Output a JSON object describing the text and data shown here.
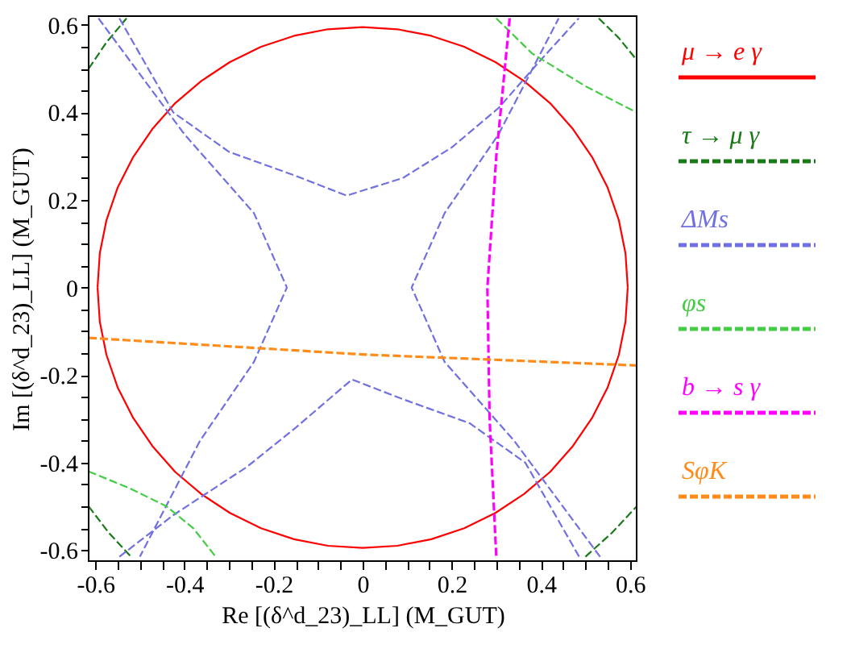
{
  "chart_data": {
    "type": "line",
    "xlabel": "Re [(δ^d_23)_LL] (M_GUT)",
    "ylabel": "Im [(δ^d_23)_LL] (M_GUT)",
    "xlim": [
      -0.615,
      0.615
    ],
    "ylim": [
      -0.625,
      0.62
    ],
    "xticks": [
      -0.6,
      {
        "value": -0.55,
        "label": null
      },
      {
        "value": -0.5,
        "label": null
      },
      {
        "value": -0.45,
        "label": null
      },
      -0.4,
      {
        "value": -0.35,
        "label": null
      },
      {
        "value": -0.3,
        "label": null
      },
      {
        "value": -0.25,
        "label": null
      },
      -0.2,
      {
        "value": -0.15,
        "label": null
      },
      {
        "value": -0.1,
        "label": null
      },
      {
        "value": -0.05,
        "label": null
      },
      0,
      {
        "value": 0.05,
        "label": null
      },
      {
        "value": 0.1,
        "label": null
      },
      {
        "value": 0.15,
        "label": null
      },
      0.2,
      {
        "value": 0.25,
        "label": null
      },
      {
        "value": 0.3,
        "label": null
      },
      {
        "value": 0.35,
        "label": null
      },
      0.4,
      {
        "value": 0.45,
        "label": null
      },
      {
        "value": 0.5,
        "label": null
      },
      {
        "value": 0.55,
        "label": null
      },
      0.6
    ],
    "yticks": [
      -0.6,
      {
        "value": -0.55,
        "label": null
      },
      {
        "value": -0.5,
        "label": null
      },
      {
        "value": -0.45,
        "label": null
      },
      -0.4,
      {
        "value": -0.35,
        "label": null
      },
      {
        "value": -0.3,
        "label": null
      },
      {
        "value": -0.25,
        "label": null
      },
      -0.2,
      {
        "value": -0.15,
        "label": null
      },
      {
        "value": -0.1,
        "label": null
      },
      {
        "value": -0.05,
        "label": null
      },
      0,
      {
        "value": 0.05,
        "label": null
      },
      {
        "value": 0.1,
        "label": null
      },
      {
        "value": 0.15,
        "label": null
      },
      0.2,
      {
        "value": 0.25,
        "label": null
      },
      {
        "value": 0.3,
        "label": null
      },
      {
        "value": 0.35,
        "label": null
      },
      0.4,
      {
        "value": 0.45,
        "label": null
      },
      {
        "value": 0.5,
        "label": null
      },
      {
        "value": 0.55,
        "label": null
      },
      0.6
    ],
    "grid": false,
    "legend": "right",
    "marker": "none",
    "series": [
      {
        "name": "μ → e γ",
        "color": "#ff0000",
        "line_style": "solid",
        "x": [
          0.595,
          0.59,
          0.575,
          0.55,
          0.515,
          0.472,
          0.421,
          0.362,
          0.298,
          0.228,
          0.154,
          0.078,
          0,
          -0.078,
          -0.154,
          -0.228,
          -0.298,
          -0.362,
          -0.421,
          -0.472,
          -0.515,
          -0.55,
          -0.575,
          -0.59,
          -0.595,
          null,
          -0.595,
          -0.59,
          -0.575,
          -0.55,
          -0.515,
          -0.472,
          -0.421,
          -0.362,
          -0.298,
          -0.228,
          -0.154,
          -0.078,
          0,
          0.078,
          0.154,
          0.228,
          0.298,
          0.362,
          0.421,
          0.472,
          0.515,
          0.55,
          0.575,
          0.59,
          0.595
        ],
        "values": [
          0,
          0.078,
          0.154,
          0.228,
          0.298,
          0.362,
          0.421,
          0.472,
          0.515,
          0.55,
          0.575,
          0.59,
          0.595,
          0.59,
          0.575,
          0.55,
          0.515,
          0.472,
          0.421,
          0.362,
          0.298,
          0.228,
          0.154,
          0.078,
          0,
          null,
          0,
          -0.078,
          -0.154,
          -0.228,
          -0.298,
          -0.362,
          -0.421,
          -0.472,
          -0.515,
          -0.55,
          -0.575,
          -0.59,
          -0.595,
          -0.59,
          -0.575,
          -0.55,
          -0.515,
          -0.472,
          -0.421,
          -0.362,
          -0.298,
          -0.228,
          -0.154,
          -0.078,
          0
        ]
      },
      {
        "name": "τ → μ γ",
        "color": "#1a7a1a",
        "line_style": "dashed",
        "x": [
          -0.615,
          -0.575,
          -0.53,
          null,
          -0.615,
          -0.57,
          -0.52,
          null,
          0.53,
          0.575,
          0.615,
          null,
          0.5,
          0.56,
          0.615
        ],
        "values": [
          0.5,
          0.56,
          0.615,
          null,
          -0.5,
          -0.56,
          -0.615,
          null,
          0.615,
          0.57,
          0.52,
          null,
          -0.615,
          -0.56,
          -0.5
        ]
      },
      {
        "name": "ΔMs",
        "color": "#7070e0",
        "line_style": "dashed",
        "x": [
          -0.546,
          -0.425,
          -0.3,
          -0.15,
          -0.036,
          0.09,
          0.2,
          0.305,
          0.4,
          0.485,
          null,
          -0.546,
          -0.425,
          -0.26,
          -0.15,
          -0.024,
          0.09,
          0.24,
          0.365,
          0.486,
          null,
          0.533,
          0.34,
          0.184,
          0.11,
          0.184,
          0.305,
          0.44,
          null,
          -0.593,
          -0.4,
          -0.244,
          -0.17,
          -0.244,
          -0.365,
          -0.5
        ],
        "values": [
          0.615,
          0.4,
          0.31,
          0.255,
          0.21,
          0.25,
          0.32,
          0.41,
          0.52,
          0.615,
          null,
          -0.615,
          -0.52,
          -0.41,
          -0.32,
          -0.21,
          -0.255,
          -0.31,
          -0.4,
          -0.615,
          null,
          -0.615,
          -0.35,
          -0.17,
          0,
          0.17,
          0.35,
          0.615,
          null,
          0.615,
          0.35,
          0.17,
          0,
          -0.17,
          -0.35,
          -0.615
        ]
      },
      {
        "name": "φs",
        "color": "#44cc44",
        "line_style": "dashed",
        "x": [
          -0.615,
          -0.52,
          -0.44,
          -0.38,
          -0.33,
          null,
          0.3,
          0.38,
          0.5,
          0.615
        ],
        "values": [
          -0.42,
          -0.46,
          -0.5,
          -0.55,
          -0.615,
          null,
          0.615,
          0.535,
          0.46,
          0.4
        ]
      },
      {
        "name": "b → s γ",
        "color": "#ff00ff",
        "line_style": "dashed",
        "x": [
          0.33,
          0.3,
          0.28,
          0.285,
          0.3
        ],
        "values": [
          0.615,
          0.3,
          0,
          -0.3,
          -0.615
        ]
      },
      {
        "name": "SφK",
        "color": "#ff8c1a",
        "line_style": "dashed",
        "x": [
          -0.615,
          0,
          0.615
        ],
        "values": [
          -0.115,
          -0.153,
          -0.178
        ]
      }
    ]
  }
}
